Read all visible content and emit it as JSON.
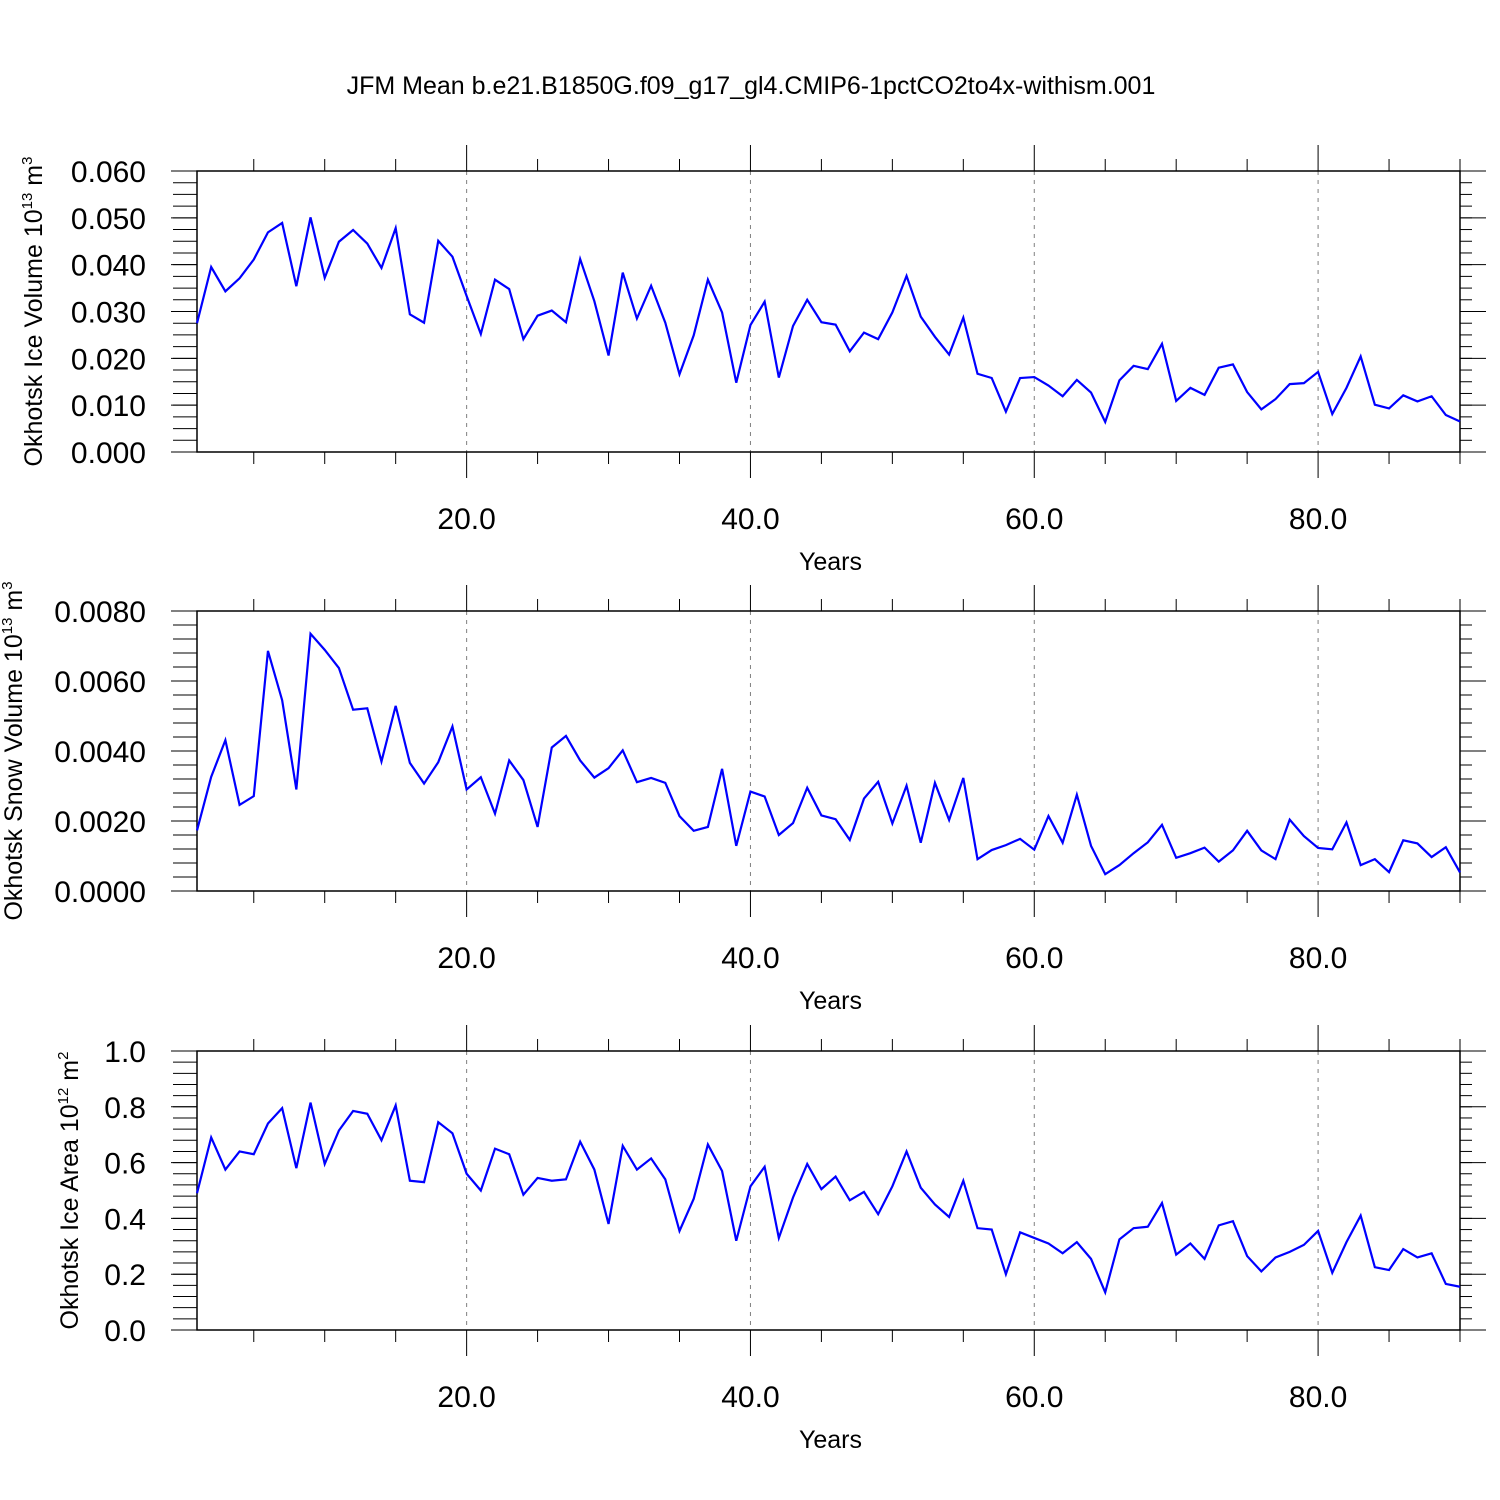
{
  "title": "JFM Mean b.e21.B1850G.f09_g17_gl4.CMIP6-1pctCO2to4x-withism.001",
  "line_color": "#0000ff",
  "chart_data": [
    {
      "type": "line",
      "title": "",
      "ylabel_main": "Okhotsk Ice Volume 10",
      "ylabel_exp": "13",
      "ylabel_unit": " m",
      "ylabel_unit_exp": "3",
      "xlabel": "Years",
      "xlim": [
        1,
        90
      ],
      "ylim": [
        0,
        0.06
      ],
      "grid": "vertical dashed at major ticks",
      "x_ticks": [
        20,
        40,
        60,
        80
      ],
      "x_tick_labels": [
        "20.0",
        "40.0",
        "60.0",
        "80.0"
      ],
      "y_ticks": [
        0,
        0.01,
        0.02,
        0.03,
        0.04,
        0.05,
        0.06
      ],
      "y_tick_labels": [
        "0.000",
        "0.010",
        "0.020",
        "0.030",
        "0.040",
        "0.050",
        "0.060"
      ],
      "series": [
        {
          "values": [
            0.0275,
            0.0395,
            0.0343,
            0.0371,
            0.0411,
            0.0469,
            0.0489,
            0.0354,
            0.0501,
            0.0372,
            0.0449,
            0.0474,
            0.0445,
            0.0393,
            0.0478,
            0.0294,
            0.0276,
            0.0451,
            0.0417,
            0.0333,
            0.0252,
            0.0368,
            0.0348,
            0.0241,
            0.0291,
            0.0302,
            0.0277,
            0.0412,
            0.0322,
            0.0206,
            0.0383,
            0.0285,
            0.0355,
            0.0276,
            0.0166,
            0.0249,
            0.0368,
            0.0298,
            0.0148,
            0.0271,
            0.0321,
            0.0159,
            0.0269,
            0.0325,
            0.0277,
            0.0272,
            0.0215,
            0.0255,
            0.0241,
            0.0298,
            0.0376,
            0.0289,
            0.0246,
            0.0208,
            0.0287,
            0.0167,
            0.0158,
            0.0086,
            0.0158,
            0.016,
            0.0142,
            0.0119,
            0.0154,
            0.0127,
            0.0064,
            0.0153,
            0.0184,
            0.0177,
            0.0231,
            0.0109,
            0.0137,
            0.0122,
            0.018,
            0.0187,
            0.0128,
            0.0091,
            0.0113,
            0.0145,
            0.0147,
            0.0171,
            0.0081,
            0.0137,
            0.0204,
            0.0101,
            0.0093,
            0.0121,
            0.0108,
            0.0119,
            0.0079,
            0.0065
          ]
        }
      ]
    },
    {
      "type": "line",
      "title": "",
      "ylabel_main": "Okhotsk Snow Volume 10",
      "ylabel_exp": "13",
      "ylabel_unit": " m",
      "ylabel_unit_exp": "3",
      "xlabel": "Years",
      "xlim": [
        1,
        90
      ],
      "ylim": [
        0,
        0.008
      ],
      "grid": "vertical dashed at major ticks",
      "x_ticks": [
        20,
        40,
        60,
        80
      ],
      "x_tick_labels": [
        "20.0",
        "40.0",
        "60.0",
        "80.0"
      ],
      "y_ticks": [
        0,
        0.002,
        0.004,
        0.006,
        0.008
      ],
      "y_tick_labels": [
        "0.0000",
        "0.0020",
        "0.0040",
        "0.0060",
        "0.0080"
      ],
      "series": [
        {
          "values": [
            0.00173,
            0.00326,
            0.00431,
            0.00246,
            0.00271,
            0.00686,
            0.00545,
            0.0029,
            0.00735,
            0.00689,
            0.00637,
            0.00518,
            0.00522,
            0.0037,
            0.00529,
            0.00366,
            0.00307,
            0.00368,
            0.0047,
            0.0029,
            0.00325,
            0.00221,
            0.00373,
            0.00317,
            0.00183,
            0.0041,
            0.00443,
            0.00373,
            0.00324,
            0.00351,
            0.00402,
            0.00311,
            0.00323,
            0.00309,
            0.00214,
            0.00172,
            0.00183,
            0.00349,
            0.00129,
            0.00284,
            0.0027,
            0.0016,
            0.00194,
            0.00295,
            0.00216,
            0.00205,
            0.00146,
            0.00264,
            0.00312,
            0.00193,
            0.00301,
            0.00138,
            0.00309,
            0.00203,
            0.00323,
            0.00091,
            0.00117,
            0.00131,
            0.00149,
            0.00118,
            0.00214,
            0.00138,
            0.00275,
            0.00129,
            0.00048,
            0.00074,
            0.00108,
            0.00139,
            0.00189,
            0.00095,
            0.00108,
            0.00124,
            0.00084,
            0.00116,
            0.00172,
            0.00116,
            0.00091,
            0.00204,
            0.00157,
            0.00123,
            0.00119,
            0.00196,
            0.00074,
            0.00091,
            0.00054,
            0.00145,
            0.00136,
            0.00097,
            0.00125,
            0.00053
          ]
        }
      ]
    },
    {
      "type": "line",
      "title": "",
      "ylabel_main": "Okhotsk Ice Area 10",
      "ylabel_exp": "12",
      "ylabel_unit": " m",
      "ylabel_unit_exp": "2",
      "xlabel": "Years",
      "xlim": [
        1,
        90
      ],
      "ylim": [
        0,
        1.0
      ],
      "grid": "vertical dashed at major ticks",
      "x_ticks": [
        20,
        40,
        60,
        80
      ],
      "x_tick_labels": [
        "20.0",
        "40.0",
        "60.0",
        "80.0"
      ],
      "y_ticks": [
        0,
        0.2,
        0.4,
        0.6,
        0.8,
        1.0
      ],
      "y_tick_labels": [
        "0.0",
        "0.2",
        "0.4",
        "0.6",
        "0.8",
        "1.0"
      ],
      "series": [
        {
          "values": [
            0.49,
            0.69,
            0.575,
            0.64,
            0.63,
            0.74,
            0.795,
            0.58,
            0.815,
            0.595,
            0.715,
            0.785,
            0.775,
            0.68,
            0.805,
            0.535,
            0.53,
            0.745,
            0.705,
            0.56,
            0.5,
            0.65,
            0.63,
            0.485,
            0.545,
            0.535,
            0.54,
            0.675,
            0.575,
            0.38,
            0.66,
            0.575,
            0.615,
            0.54,
            0.355,
            0.47,
            0.665,
            0.57,
            0.32,
            0.515,
            0.585,
            0.33,
            0.475,
            0.595,
            0.505,
            0.55,
            0.465,
            0.495,
            0.415,
            0.515,
            0.64,
            0.51,
            0.45,
            0.405,
            0.535,
            0.365,
            0.36,
            0.2,
            0.35,
            0.33,
            0.31,
            0.275,
            0.315,
            0.255,
            0.135,
            0.325,
            0.365,
            0.37,
            0.455,
            0.27,
            0.31,
            0.255,
            0.375,
            0.39,
            0.265,
            0.21,
            0.26,
            0.28,
            0.305,
            0.355,
            0.205,
            0.315,
            0.41,
            0.225,
            0.215,
            0.29,
            0.26,
            0.275,
            0.165,
            0.155
          ]
        }
      ]
    }
  ]
}
